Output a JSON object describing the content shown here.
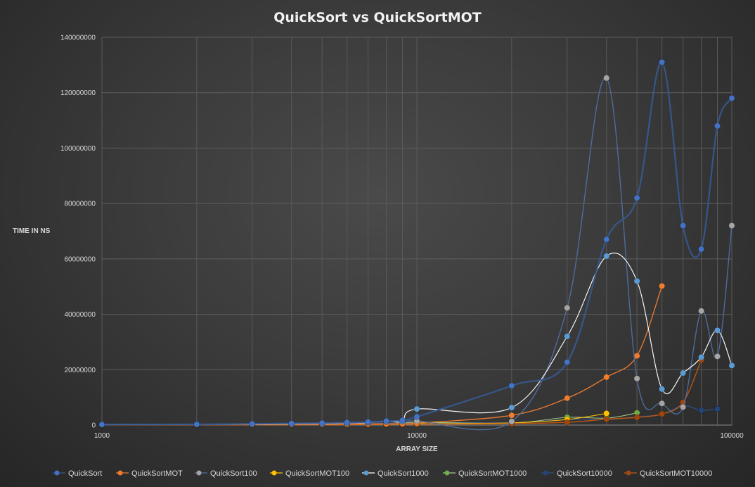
{
  "chart_data": {
    "type": "scatter",
    "title": "QuickSort  vs  QuickSortMOT",
    "xlabel": "ARRAY SIZE",
    "ylabel": "TIME IN NS",
    "xscale": "log",
    "xlim": [
      1000,
      100000
    ],
    "ylim": [
      0,
      140000000
    ],
    "x_ticks": [
      "1000",
      "10000",
      "100000"
    ],
    "y_ticks": [
      "0",
      "20000000",
      "40000000",
      "60000000",
      "80000000",
      "100000000",
      "120000000",
      "140000000"
    ],
    "grid": true,
    "smooth_lines": true,
    "legend_position": "bottom",
    "x": [
      1000,
      2000,
      3000,
      4000,
      5000,
      6000,
      7000,
      8000,
      9000,
      10000,
      20000,
      30000,
      40000,
      50000,
      60000,
      70000,
      80000,
      90000,
      100000
    ],
    "series": [
      {
        "name": "QuickSort",
        "color": "#4472c4",
        "values": [
          200000,
          250000,
          450000,
          600000,
          700000,
          900000,
          1100000,
          1400000,
          1700000,
          3000000,
          14200000,
          22700000,
          67000000,
          82000000,
          131000000,
          72000000,
          63500000,
          108000000,
          118000000
        ]
      },
      {
        "name": "QuickSortMOT",
        "color": "#ed7d31",
        "values": [
          100000,
          150000,
          200000,
          250000,
          300000,
          350000,
          400000,
          450000,
          500000,
          700000,
          3500000,
          9700000,
          17300000,
          25000000,
          50200000,
          null,
          null,
          null,
          null
        ]
      },
      {
        "name": "QuickSort100",
        "color": "#a5a5a5",
        "values": [
          150000,
          200000,
          350000,
          500000,
          700000,
          900000,
          1000000,
          1200000,
          1600000,
          1500000,
          1300000,
          42300000,
          125300000,
          16800000,
          7800000,
          6500000,
          41200000,
          24800000,
          72000000
        ]
      },
      {
        "name": "QuickSortMOT100",
        "color": "#ffc000",
        "values": [
          50000,
          80000,
          100000,
          120000,
          150000,
          200000,
          250000,
          300000,
          350000,
          450000,
          800000,
          2000000,
          4200000,
          null,
          null,
          null,
          null,
          null,
          null
        ]
      },
      {
        "name": "QuickSort1000",
        "color": "#5b9bd5",
        "values": [
          150000,
          200000,
          300000,
          400000,
          500000,
          700000,
          900000,
          1500000,
          1300000,
          5800000,
          6300000,
          32000000,
          61000000,
          52000000,
          13000000,
          18800000,
          24500000,
          34200000,
          21500000
        ]
      },
      {
        "name": "QuickSortMOT1000",
        "color": "#70ad47",
        "values": [
          50000,
          70000,
          90000,
          110000,
          130000,
          160000,
          200000,
          250000,
          300000,
          1000000,
          700000,
          2800000,
          2500000,
          4400000,
          null,
          null,
          null,
          null,
          null
        ]
      },
      {
        "name": "QuickSort10000",
        "color": "#264478",
        "values": [
          100000,
          150000,
          200000,
          300000,
          400000,
          500000,
          600000,
          700000,
          800000,
          900000,
          900000,
          2000000,
          2000000,
          3000000,
          3900000,
          7000000,
          5300000,
          5800000,
          null
        ]
      },
      {
        "name": "QuickSortMOT10000",
        "color": "#9e480e",
        "values": [
          40000,
          60000,
          80000,
          100000,
          120000,
          150000,
          180000,
          210000,
          250000,
          300000,
          500000,
          1000000,
          2100000,
          2800000,
          4000000,
          8200000,
          23500000,
          null,
          null
        ]
      }
    ]
  }
}
